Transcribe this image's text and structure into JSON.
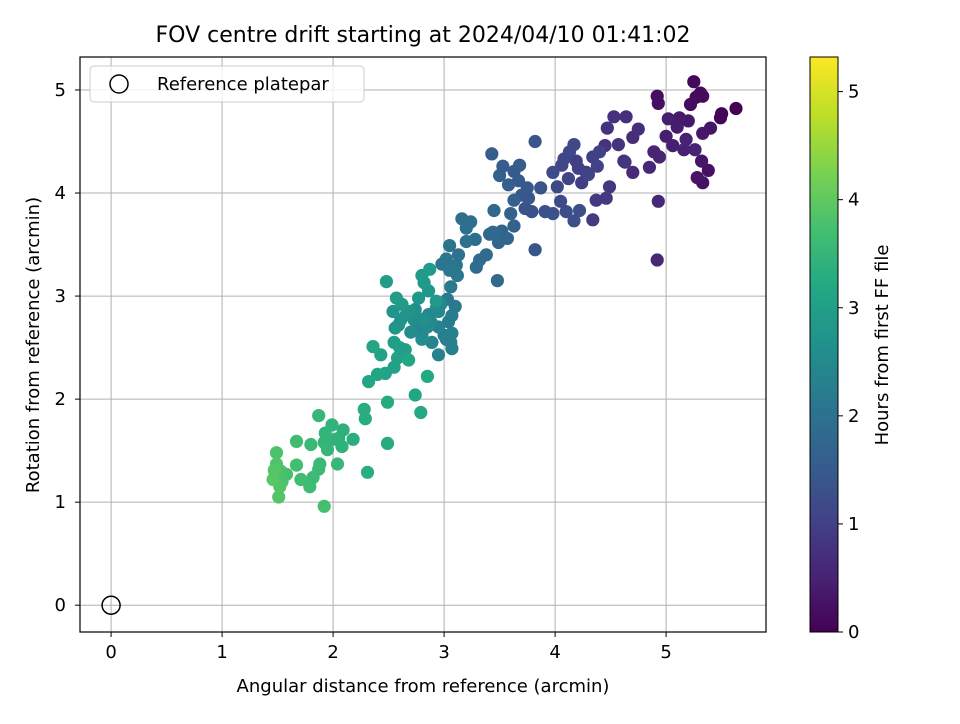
{
  "chart_data": {
    "type": "scatter",
    "title": "FOV centre drift starting at 2024/04/10 01:41:02",
    "xlabel": "Angular distance from reference (arcmin)",
    "ylabel": "Rotation from reference (arcmin)",
    "xlim": [
      -0.28,
      5.9
    ],
    "ylim": [
      -0.26,
      5.32
    ],
    "xticks": [
      "0",
      "1",
      "2",
      "3",
      "4",
      "5"
    ],
    "yticks": [
      "0",
      "1",
      "2",
      "3",
      "4",
      "5"
    ],
    "grid": true,
    "legend": {
      "placement": "top-left",
      "entries": [
        "Reference platepar"
      ]
    },
    "reference_point": {
      "name": "Reference platepar",
      "x": 0,
      "y": 0,
      "marker": "hollow-circle",
      "color": "#000000"
    },
    "colorbar": {
      "label": "Hours from first FF file",
      "range": [
        0,
        5.32
      ],
      "ticks": [
        "0",
        "1",
        "2",
        "3",
        "4",
        "5"
      ],
      "colormap": "viridis"
    },
    "series": [
      {
        "columns": [
          "x",
          "y",
          "hours"
        ],
        "points": [
          [
            5.63,
            4.82,
            0.02
          ],
          [
            5.5,
            4.77,
            0.05
          ],
          [
            5.49,
            4.73,
            0.08
          ],
          [
            5.25,
            5.08,
            0.1
          ],
          [
            5.31,
            4.97,
            0.12
          ],
          [
            5.33,
            4.94,
            0.14
          ],
          [
            5.27,
            4.93,
            0.16
          ],
          [
            5.22,
            4.86,
            0.18
          ],
          [
            4.92,
            4.94,
            0.2
          ],
          [
            4.93,
            4.87,
            0.22
          ],
          [
            5.38,
            4.22,
            0.24
          ],
          [
            5.33,
            4.1,
            0.26
          ],
          [
            5.28,
            4.15,
            0.28
          ],
          [
            5.32,
            4.31,
            0.3
          ],
          [
            5.4,
            4.63,
            0.32
          ],
          [
            5.33,
            4.58,
            0.34
          ],
          [
            5.2,
            4.7,
            0.36
          ],
          [
            5.12,
            4.73,
            0.38
          ],
          [
            5.1,
            4.64,
            0.4
          ],
          [
            5.02,
            4.72,
            0.42
          ],
          [
            5.0,
            4.55,
            0.44
          ],
          [
            5.06,
            4.46,
            0.46
          ],
          [
            5.16,
            4.42,
            0.48
          ],
          [
            5.18,
            4.52,
            0.5
          ],
          [
            5.26,
            4.42,
            0.52
          ],
          [
            4.94,
            4.35,
            0.54
          ],
          [
            4.89,
            4.4,
            0.56
          ],
          [
            4.85,
            4.25,
            0.58
          ],
          [
            4.93,
            3.92,
            0.6
          ],
          [
            4.92,
            3.35,
            0.62
          ],
          [
            4.7,
            4.2,
            0.64
          ],
          [
            4.62,
            4.31,
            0.66
          ],
          [
            4.7,
            4.54,
            0.68
          ],
          [
            4.75,
            4.62,
            0.7
          ],
          [
            4.64,
            4.74,
            0.72
          ],
          [
            4.53,
            4.74,
            0.74
          ],
          [
            4.47,
            4.63,
            0.76
          ],
          [
            4.45,
            4.46,
            0.78
          ],
          [
            4.57,
            4.47,
            0.8
          ],
          [
            4.63,
            4.3,
            0.82
          ],
          [
            4.49,
            4.06,
            0.84
          ],
          [
            4.46,
            3.95,
            0.86
          ],
          [
            4.37,
            3.93,
            0.88
          ],
          [
            4.34,
            3.74,
            0.9
          ],
          [
            4.28,
            4.2,
            0.92
          ],
          [
            4.24,
            4.1,
            0.94
          ],
          [
            4.19,
            4.31,
            0.96
          ],
          [
            4.21,
            4.24,
            0.98
          ],
          [
            4.34,
            4.35,
            1.0
          ],
          [
            4.4,
            4.4,
            1.02
          ],
          [
            4.38,
            4.26,
            1.04
          ],
          [
            4.3,
            4.18,
            1.06
          ],
          [
            4.12,
            4.14,
            1.08
          ],
          [
            4.06,
            4.27,
            1.1
          ],
          [
            4.08,
            4.33,
            1.12
          ],
          [
            4.13,
            4.4,
            1.14
          ],
          [
            4.17,
            4.47,
            1.16
          ],
          [
            4.02,
            4.06,
            1.18
          ],
          [
            3.98,
            4.2,
            1.2
          ],
          [
            4.05,
            3.92,
            1.22
          ],
          [
            4.1,
            3.82,
            1.24
          ],
          [
            4.17,
            3.73,
            1.26
          ],
          [
            4.22,
            3.83,
            1.28
          ],
          [
            3.98,
            3.8,
            1.3
          ],
          [
            3.91,
            3.82,
            1.32
          ],
          [
            3.79,
            3.82,
            1.34
          ],
          [
            3.73,
            3.85,
            1.36
          ],
          [
            3.87,
            4.05,
            1.38
          ],
          [
            3.82,
            4.5,
            1.4
          ],
          [
            3.82,
            3.45,
            1.42
          ],
          [
            3.7,
            3.98,
            1.44
          ],
          [
            3.76,
            3.95,
            1.46
          ],
          [
            3.75,
            4.05,
            1.48
          ],
          [
            3.67,
            4.12,
            1.5
          ],
          [
            3.63,
            4.21,
            1.52
          ],
          [
            3.68,
            4.27,
            1.54
          ],
          [
            3.53,
            4.26,
            1.56
          ],
          [
            3.43,
            4.38,
            1.58
          ],
          [
            3.5,
            4.17,
            1.6
          ],
          [
            3.58,
            4.08,
            1.62
          ],
          [
            3.63,
            3.93,
            1.64
          ],
          [
            3.6,
            3.8,
            1.66
          ],
          [
            3.63,
            3.68,
            1.68
          ],
          [
            3.57,
            3.56,
            1.7
          ],
          [
            3.52,
            3.63,
            1.72
          ],
          [
            3.49,
            3.52,
            1.74
          ],
          [
            3.45,
            3.83,
            1.76
          ],
          [
            3.41,
            3.6,
            1.78
          ],
          [
            3.44,
            3.62,
            1.8
          ],
          [
            3.48,
            3.15,
            1.82
          ],
          [
            3.38,
            3.4,
            1.84
          ],
          [
            3.32,
            3.35,
            1.86
          ],
          [
            3.29,
            3.28,
            1.88
          ],
          [
            3.28,
            3.55,
            1.9
          ],
          [
            3.24,
            3.72,
            1.92
          ],
          [
            3.16,
            3.75,
            1.94
          ],
          [
            3.2,
            3.66,
            1.96
          ],
          [
            3.2,
            3.53,
            1.98
          ],
          [
            3.13,
            3.4,
            2.0
          ],
          [
            3.11,
            3.3,
            2.02
          ],
          [
            3.05,
            3.49,
            2.04
          ],
          [
            3.02,
            3.36,
            2.06
          ],
          [
            2.98,
            3.31,
            2.08
          ],
          [
            3.05,
            3.25,
            2.1
          ],
          [
            3.12,
            3.2,
            2.12
          ],
          [
            3.06,
            3.09,
            2.14
          ],
          [
            3.03,
            2.97,
            2.16
          ],
          [
            3.1,
            2.9,
            2.18
          ],
          [
            3.07,
            2.81,
            2.2
          ],
          [
            3.04,
            2.75,
            2.22
          ],
          [
            3.0,
            2.62,
            2.24
          ],
          [
            3.02,
            2.58,
            2.26
          ],
          [
            3.07,
            2.49,
            2.28
          ],
          [
            3.06,
            2.55,
            2.3
          ],
          [
            3.07,
            2.64,
            2.32
          ],
          [
            2.95,
            2.7,
            2.34
          ],
          [
            2.95,
            2.43,
            2.36
          ],
          [
            2.89,
            2.55,
            2.38
          ],
          [
            2.8,
            2.62,
            2.4
          ],
          [
            2.76,
            2.7,
            2.42
          ],
          [
            2.86,
            2.82,
            2.44
          ],
          [
            2.88,
            2.75,
            2.46
          ],
          [
            2.95,
            2.85,
            2.48
          ],
          [
            2.97,
            2.92,
            2.5
          ],
          [
            2.93,
            2.88,
            2.52
          ],
          [
            2.85,
            2.7,
            2.54
          ],
          [
            2.8,
            2.58,
            2.56
          ],
          [
            2.7,
            2.65,
            2.58
          ],
          [
            2.73,
            2.77,
            2.6
          ],
          [
            2.82,
            2.78,
            2.62
          ],
          [
            2.74,
            2.87,
            2.64
          ],
          [
            2.66,
            2.82,
            2.66
          ],
          [
            2.61,
            2.77,
            2.68
          ],
          [
            2.59,
            2.72,
            2.7
          ],
          [
            2.56,
            2.69,
            2.72
          ],
          [
            2.54,
            2.85,
            2.74
          ],
          [
            2.69,
            2.85,
            2.76
          ],
          [
            2.77,
            2.98,
            2.78
          ],
          [
            2.86,
            3.05,
            2.8
          ],
          [
            2.93,
            2.95,
            2.82
          ],
          [
            2.82,
            3.13,
            2.84
          ],
          [
            2.8,
            3.2,
            2.86
          ],
          [
            2.87,
            3.26,
            2.88
          ],
          [
            2.62,
            2.92,
            2.9
          ],
          [
            2.57,
            2.98,
            2.92
          ],
          [
            2.48,
            3.14,
            2.94
          ],
          [
            2.55,
            2.55,
            2.96
          ],
          [
            2.6,
            2.5,
            2.98
          ],
          [
            2.65,
            2.48,
            3.0
          ],
          [
            2.58,
            2.4,
            3.02
          ],
          [
            2.55,
            2.31,
            3.04
          ],
          [
            2.47,
            2.25,
            3.06
          ],
          [
            2.43,
            2.43,
            3.08
          ],
          [
            2.36,
            2.51,
            3.1
          ],
          [
            2.4,
            2.24,
            3.12
          ],
          [
            2.32,
            2.17,
            3.14
          ],
          [
            2.68,
            2.38,
            3.16
          ],
          [
            2.74,
            2.04,
            3.18
          ],
          [
            2.85,
            2.22,
            3.2
          ],
          [
            2.79,
            1.87,
            3.22
          ],
          [
            2.49,
            1.97,
            3.24
          ],
          [
            2.49,
            1.57,
            3.26
          ],
          [
            2.29,
            1.81,
            3.28
          ],
          [
            2.28,
            1.9,
            3.3
          ],
          [
            2.31,
            1.29,
            3.32
          ],
          [
            2.18,
            1.61,
            3.34
          ],
          [
            2.09,
            1.7,
            3.36
          ],
          [
            2.05,
            1.62,
            3.38
          ],
          [
            2.08,
            1.54,
            3.4
          ],
          [
            2.02,
            1.61,
            3.42
          ],
          [
            1.99,
            1.75,
            3.44
          ],
          [
            1.93,
            1.67,
            3.46
          ],
          [
            1.92,
            1.58,
            3.48
          ],
          [
            1.95,
            1.51,
            3.5
          ],
          [
            2.04,
            1.37,
            3.52
          ],
          [
            1.87,
            1.84,
            3.54
          ],
          [
            1.8,
            1.56,
            3.56
          ],
          [
            1.88,
            1.37,
            3.58
          ],
          [
            1.87,
            1.32,
            3.6
          ],
          [
            1.82,
            1.24,
            3.62
          ],
          [
            1.79,
            1.15,
            3.64
          ],
          [
            1.67,
            1.59,
            3.66
          ],
          [
            1.71,
            1.22,
            3.68
          ],
          [
            1.67,
            1.36,
            3.7
          ],
          [
            1.92,
            0.96,
            3.72
          ],
          [
            1.58,
            1.27,
            3.74
          ],
          [
            1.53,
            1.3,
            3.76
          ],
          [
            1.54,
            1.2,
            3.78
          ],
          [
            1.49,
            1.48,
            3.8
          ],
          [
            1.48,
            1.27,
            3.82
          ],
          [
            1.49,
            1.37,
            3.84
          ],
          [
            1.52,
            1.15,
            3.86
          ],
          [
            1.51,
            1.05,
            3.88
          ],
          [
            1.47,
            1.31,
            3.9
          ],
          [
            1.46,
            1.22,
            3.92
          ]
        ]
      }
    ]
  }
}
